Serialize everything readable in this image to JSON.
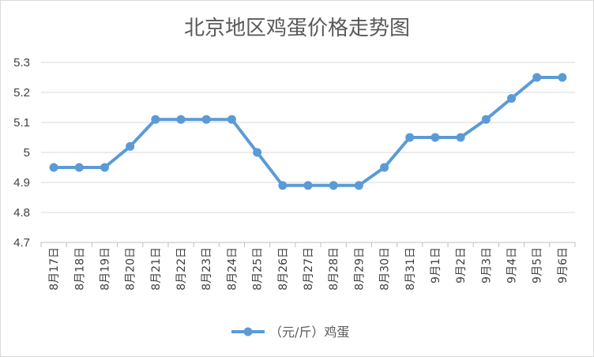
{
  "chart_data": {
    "type": "line",
    "title": "北京地区鸡蛋价格走势图",
    "xlabel": "",
    "ylabel": "",
    "categories": [
      "8月17日",
      "8月18日",
      "8月19日",
      "8月20日",
      "8月21日",
      "8月22日",
      "8月23日",
      "8月24日",
      "8月25日",
      "8月26日",
      "8月27日",
      "8月28日",
      "8月29日",
      "8月30日",
      "8月31日",
      "9月1日",
      "9月2日",
      "9月3日",
      "9月4日",
      "9月5日",
      "9月6日"
    ],
    "series": [
      {
        "name": "（元/斤）鸡蛋",
        "values": [
          4.95,
          4.95,
          4.95,
          5.02,
          5.11,
          5.11,
          5.11,
          5.11,
          5.0,
          4.89,
          4.89,
          4.89,
          4.89,
          4.95,
          5.05,
          5.05,
          5.05,
          5.11,
          5.18,
          5.25,
          5.25
        ],
        "color": "#5b9bd5"
      }
    ],
    "ylim": [
      4.7,
      5.3
    ],
    "yticks": [
      "4.7",
      "4.8",
      "4.9",
      "5",
      "5.1",
      "5.2",
      "5.3"
    ],
    "grid": true,
    "legend_position": "bottom"
  }
}
